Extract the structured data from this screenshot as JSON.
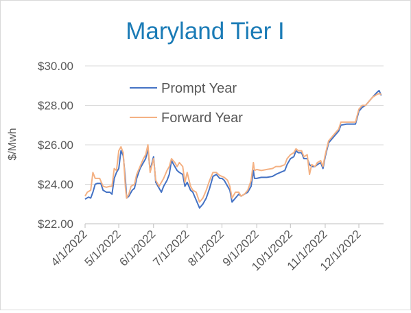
{
  "chart_data": {
    "type": "line",
    "title": "Maryland Tier I",
    "ylabel": "$/Mwh",
    "xlabel": "",
    "ylim": [
      22,
      30
    ],
    "y_ticks": [
      "$22.00",
      "$24.00",
      "$26.00",
      "$28.00",
      "$30.00"
    ],
    "y_tick_values": [
      22,
      24,
      26,
      28,
      30
    ],
    "x_ticks": [
      "4/1/2022",
      "5/1/2022",
      "6/1/2022",
      "7/1/2022",
      "8/1/2022",
      "9/1/2022",
      "10/1/2022",
      "11/1/2022",
      "12/1/2022"
    ],
    "x_range": [
      "4/1/2022",
      "12/23/2022"
    ],
    "grid": "horizontal",
    "legend_position": "top-left",
    "series": [
      {
        "name": "Prompt Year",
        "color": "#4472C4",
        "points": [
          [
            "4/1/2022",
            23.25
          ],
          [
            "4/4/2022",
            23.35
          ],
          [
            "4/6/2022",
            23.3
          ],
          [
            "4/8/2022",
            23.6
          ],
          [
            "4/10/2022",
            24.0
          ],
          [
            "4/12/2022",
            24.05
          ],
          [
            "4/15/2022",
            24.05
          ],
          [
            "4/17/2022",
            23.7
          ],
          [
            "4/20/2022",
            23.6
          ],
          [
            "4/23/2022",
            23.6
          ],
          [
            "4/25/2022",
            23.5
          ],
          [
            "4/27/2022",
            24.3
          ],
          [
            "4/29/2022",
            24.6
          ],
          [
            "5/1/2022",
            24.8
          ],
          [
            "5/3/2022",
            25.7
          ],
          [
            "5/5/2022",
            25.45
          ],
          [
            "5/7/2022",
            24.2
          ],
          [
            "5/8/2022",
            23.3
          ],
          [
            "5/10/2022",
            23.4
          ],
          [
            "5/13/2022",
            23.7
          ],
          [
            "5/15/2022",
            23.8
          ],
          [
            "5/17/2022",
            24.3
          ],
          [
            "5/20/2022",
            24.8
          ],
          [
            "5/23/2022",
            25.1
          ],
          [
            "5/25/2022",
            25.3
          ],
          [
            "5/27/2022",
            25.8
          ],
          [
            "5/29/2022",
            24.7
          ],
          [
            "6/1/2022",
            25.4
          ],
          [
            "6/3/2022",
            24.1
          ],
          [
            "6/6/2022",
            23.8
          ],
          [
            "6/8/2022",
            23.6
          ],
          [
            "6/10/2022",
            23.9
          ],
          [
            "6/13/2022",
            24.2
          ],
          [
            "6/15/2022",
            24.5
          ],
          [
            "6/17/2022",
            25.2
          ],
          [
            "6/20/2022",
            24.9
          ],
          [
            "6/22/2022",
            24.7
          ],
          [
            "6/24/2022",
            24.6
          ],
          [
            "6/27/2022",
            24.5
          ],
          [
            "6/29/2022",
            23.9
          ],
          [
            "7/1/2022",
            24.1
          ],
          [
            "7/4/2022",
            23.7
          ],
          [
            "7/6/2022",
            23.6
          ],
          [
            "7/9/2022",
            23.2
          ],
          [
            "7/12/2022",
            22.8
          ],
          [
            "7/15/2022",
            23.0
          ],
          [
            "7/18/2022",
            23.3
          ],
          [
            "7/21/2022",
            23.8
          ],
          [
            "7/24/2022",
            24.4
          ],
          [
            "7/27/2022",
            24.5
          ],
          [
            "7/30/2022",
            24.3
          ],
          [
            "8/1/2022",
            24.3
          ],
          [
            "8/3/2022",
            24.2
          ],
          [
            "8/6/2022",
            23.9
          ],
          [
            "8/8/2022",
            23.7
          ],
          [
            "8/10/2022",
            23.1
          ],
          [
            "8/13/2022",
            23.3
          ],
          [
            "8/16/2022",
            23.5
          ],
          [
            "8/18/2022",
            23.4
          ],
          [
            "8/21/2022",
            23.5
          ],
          [
            "8/24/2022",
            23.6
          ],
          [
            "8/27/2022",
            23.9
          ],
          [
            "8/29/2022",
            24.7
          ],
          [
            "8/30/2022",
            24.3
          ],
          [
            "9/1/2022",
            24.3
          ],
          [
            "9/5/2022",
            24.35
          ],
          [
            "9/10/2022",
            24.35
          ],
          [
            "9/15/2022",
            24.4
          ],
          [
            "9/18/2022",
            24.5
          ],
          [
            "9/22/2022",
            24.6
          ],
          [
            "9/26/2022",
            24.7
          ],
          [
            "9/28/2022",
            25.0
          ],
          [
            "10/1/2022",
            25.3
          ],
          [
            "10/4/2022",
            25.4
          ],
          [
            "10/6/2022",
            25.7
          ],
          [
            "10/8/2022",
            25.6
          ],
          [
            "10/11/2022",
            25.6
          ],
          [
            "10/13/2022",
            25.3
          ],
          [
            "10/16/2022",
            25.3
          ],
          [
            "10/18/2022",
            25.0
          ],
          [
            "10/20/2022",
            24.9
          ],
          [
            "10/23/2022",
            24.9
          ],
          [
            "10/25/2022",
            25.0
          ],
          [
            "10/28/2022",
            25.1
          ],
          [
            "10/30/2022",
            24.8
          ],
          [
            "11/1/2022",
            25.4
          ],
          [
            "11/4/2022",
            26.1
          ],
          [
            "11/7/2022",
            26.3
          ],
          [
            "11/10/2022",
            26.5
          ],
          [
            "11/13/2022",
            26.7
          ],
          [
            "11/15/2022",
            27.0
          ],
          [
            "11/20/2022",
            27.05
          ],
          [
            "11/25/2022",
            27.05
          ],
          [
            "11/28/2022",
            27.05
          ],
          [
            "12/1/2022",
            27.7
          ],
          [
            "12/4/2022",
            27.9
          ],
          [
            "12/7/2022",
            28.0
          ],
          [
            "12/10/2022",
            28.2
          ],
          [
            "12/13/2022",
            28.4
          ],
          [
            "12/17/2022",
            28.65
          ],
          [
            "12/19/2022",
            28.75
          ],
          [
            "12/21/2022",
            28.5
          ]
        ]
      },
      {
        "name": "Forward Year",
        "color": "#F4B183",
        "points": [
          [
            "4/1/2022",
            23.4
          ],
          [
            "4/3/2022",
            23.6
          ],
          [
            "4/6/2022",
            23.7
          ],
          [
            "4/8/2022",
            24.6
          ],
          [
            "4/10/2022",
            24.3
          ],
          [
            "4/14/2022",
            24.3
          ],
          [
            "4/17/2022",
            23.9
          ],
          [
            "4/20/2022",
            23.85
          ],
          [
            "4/23/2022",
            23.9
          ],
          [
            "4/25/2022",
            23.9
          ],
          [
            "4/27/2022",
            24.8
          ],
          [
            "4/29/2022",
            24.7
          ],
          [
            "5/1/2022",
            25.7
          ],
          [
            "5/3/2022",
            25.9
          ],
          [
            "5/5/2022",
            25.6
          ],
          [
            "5/7/2022",
            23.8
          ],
          [
            "5/8/2022",
            23.3
          ],
          [
            "5/10/2022",
            23.5
          ],
          [
            "5/12/2022",
            23.9
          ],
          [
            "5/15/2022",
            24.0
          ],
          [
            "5/17/2022",
            24.5
          ],
          [
            "5/20/2022",
            24.9
          ],
          [
            "5/23/2022",
            25.3
          ],
          [
            "5/25/2022",
            25.5
          ],
          [
            "5/27/2022",
            26.0
          ],
          [
            "5/29/2022",
            24.6
          ],
          [
            "6/1/2022",
            25.3
          ],
          [
            "6/3/2022",
            24.2
          ],
          [
            "6/6/2022",
            23.9
          ],
          [
            "6/8/2022",
            24.1
          ],
          [
            "6/10/2022",
            24.3
          ],
          [
            "6/13/2022",
            24.7
          ],
          [
            "6/15/2022",
            24.9
          ],
          [
            "6/17/2022",
            25.3
          ],
          [
            "6/20/2022",
            25.1
          ],
          [
            "6/22/2022",
            24.9
          ],
          [
            "6/24/2022",
            25.1
          ],
          [
            "6/27/2022",
            24.9
          ],
          [
            "6/29/2022",
            24.1
          ],
          [
            "7/1/2022",
            24.6
          ],
          [
            "7/4/2022",
            23.9
          ],
          [
            "7/6/2022",
            23.7
          ],
          [
            "7/9/2022",
            23.6
          ],
          [
            "7/12/2022",
            23.1
          ],
          [
            "7/15/2022",
            23.3
          ],
          [
            "7/18/2022",
            23.7
          ],
          [
            "7/21/2022",
            24.2
          ],
          [
            "7/24/2022",
            24.6
          ],
          [
            "7/27/2022",
            24.6
          ],
          [
            "7/30/2022",
            24.45
          ],
          [
            "8/1/2022",
            24.4
          ],
          [
            "8/3/2022",
            24.35
          ],
          [
            "8/6/2022",
            24.2
          ],
          [
            "8/8/2022",
            23.9
          ],
          [
            "8/10/2022",
            23.3
          ],
          [
            "8/13/2022",
            23.6
          ],
          [
            "8/16/2022",
            23.6
          ],
          [
            "8/18/2022",
            23.4
          ],
          [
            "8/21/2022",
            23.5
          ],
          [
            "8/24/2022",
            23.7
          ],
          [
            "8/27/2022",
            24.2
          ],
          [
            "8/29/2022",
            25.1
          ],
          [
            "8/30/2022",
            24.7
          ],
          [
            "9/1/2022",
            24.75
          ],
          [
            "9/5/2022",
            24.7
          ],
          [
            "9/10/2022",
            24.75
          ],
          [
            "9/15/2022",
            24.8
          ],
          [
            "9/18/2022",
            24.9
          ],
          [
            "9/22/2022",
            24.9
          ],
          [
            "9/26/2022",
            25.0
          ],
          [
            "9/28/2022",
            25.3
          ],
          [
            "10/1/2022",
            25.5
          ],
          [
            "10/4/2022",
            25.6
          ],
          [
            "10/6/2022",
            25.8
          ],
          [
            "10/8/2022",
            25.7
          ],
          [
            "10/11/2022",
            25.7
          ],
          [
            "10/13/2022",
            25.4
          ],
          [
            "10/16/2022",
            25.5
          ],
          [
            "10/18/2022",
            24.5
          ],
          [
            "10/20/2022",
            25.0
          ],
          [
            "10/23/2022",
            24.9
          ],
          [
            "10/25/2022",
            25.1
          ],
          [
            "10/28/2022",
            25.2
          ],
          [
            "10/30/2022",
            24.9
          ],
          [
            "11/1/2022",
            25.5
          ],
          [
            "11/4/2022",
            26.2
          ],
          [
            "11/7/2022",
            26.4
          ],
          [
            "11/10/2022",
            26.6
          ],
          [
            "11/13/2022",
            26.8
          ],
          [
            "11/15/2022",
            27.15
          ],
          [
            "11/20/2022",
            27.15
          ],
          [
            "11/25/2022",
            27.15
          ],
          [
            "11/28/2022",
            27.15
          ],
          [
            "12/1/2022",
            27.8
          ],
          [
            "12/4/2022",
            28.0
          ],
          [
            "12/7/2022",
            28.0
          ],
          [
            "12/10/2022",
            28.2
          ],
          [
            "12/13/2022",
            28.4
          ],
          [
            "12/17/2022",
            28.55
          ],
          [
            "12/19/2022",
            28.6
          ],
          [
            "12/21/2022",
            28.55
          ]
        ]
      }
    ]
  }
}
